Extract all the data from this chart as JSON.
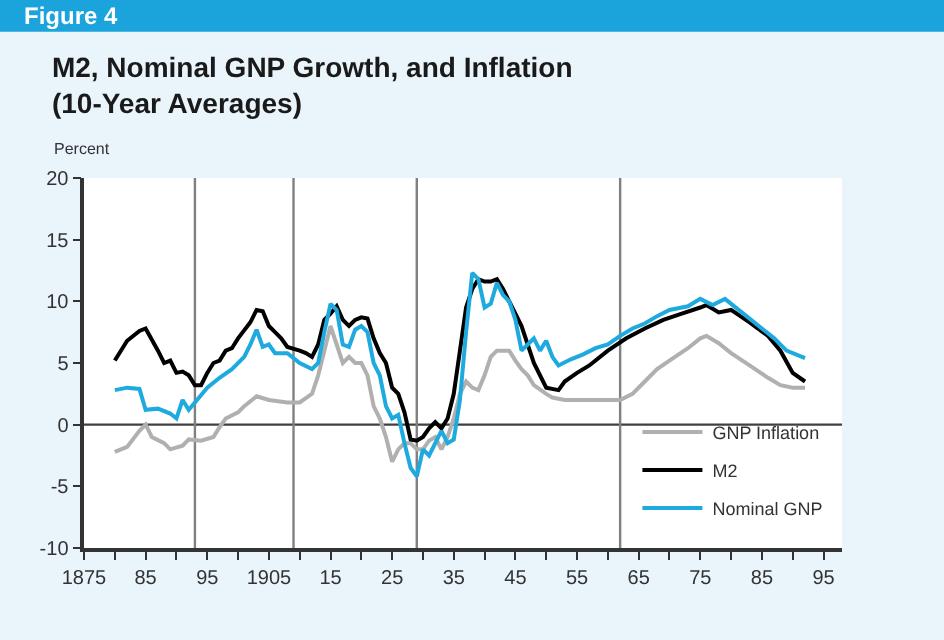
{
  "chart_data": {
    "type": "line",
    "title": "M2, Nominal GNP Growth, and Inflation\n(10-Year Averages)",
    "ylabel": "Percent",
    "annotations": [
      "Figure 4"
    ],
    "xlim": [
      1875,
      1998
    ],
    "ylim": [
      -10,
      20
    ],
    "xticks": [
      {
        "value": 1875,
        "label": "1875"
      },
      {
        "value": 1880,
        "label": null
      },
      {
        "value": 1885,
        "label": "85"
      },
      {
        "value": 1890,
        "label": null
      },
      {
        "value": 1895,
        "label": "95"
      },
      {
        "value": 1900,
        "label": null
      },
      {
        "value": 1905,
        "label": "1905"
      },
      {
        "value": 1910,
        "label": null
      },
      {
        "value": 1915,
        "label": "15"
      },
      {
        "value": 1920,
        "label": null
      },
      {
        "value": 1925,
        "label": "25"
      },
      {
        "value": 1930,
        "label": null
      },
      {
        "value": 1935,
        "label": "35"
      },
      {
        "value": 1940,
        "label": null
      },
      {
        "value": 1945,
        "label": "45"
      },
      {
        "value": 1950,
        "label": null
      },
      {
        "value": 1955,
        "label": "55"
      },
      {
        "value": 1960,
        "label": null
      },
      {
        "value": 1965,
        "label": "65"
      },
      {
        "value": 1970,
        "label": null
      },
      {
        "value": 1975,
        "label": "75"
      },
      {
        "value": 1980,
        "label": null
      },
      {
        "value": 1985,
        "label": "85"
      },
      {
        "value": 1990,
        "label": null
      },
      {
        "value": 1995,
        "label": "95"
      }
    ],
    "yticks": [
      -10,
      -5,
      0,
      5,
      10,
      15,
      20
    ],
    "grid": false,
    "legend": "bottom right",
    "marker": "none",
    "line_style": "solid",
    "ref_lines": [
      {
        "axis": "y",
        "value": 0,
        "color": "#404040"
      },
      {
        "axis": "x",
        "value": 1893,
        "color": "#808080"
      },
      {
        "axis": "x",
        "value": 1909,
        "color": "#808080"
      },
      {
        "axis": "x",
        "value": 1929,
        "color": "#808080"
      },
      {
        "axis": "x",
        "value": 1962,
        "color": "#808080"
      }
    ],
    "series": [
      {
        "name": "GNP Inflation",
        "color": "#b0b0b0",
        "x": [
          1880,
          1882,
          1884,
          1885,
          1886,
          1888,
          1889,
          1891,
          1892,
          1894,
          1896,
          1897,
          1898,
          1900,
          1901,
          1903,
          1905,
          1908,
          1910,
          1912,
          1913,
          1914,
          1915,
          1916,
          1917,
          1918,
          1919,
          1920,
          1921,
          1922,
          1923,
          1924,
          1925,
          1926,
          1927,
          1928,
          1929,
          1930,
          1931,
          1932,
          1933,
          1934,
          1935,
          1936,
          1937,
          1938,
          1939,
          1940,
          1941,
          1942,
          1944,
          1945,
          1946,
          1947,
          1948,
          1950,
          1951,
          1953,
          1956,
          1959,
          1962,
          1964,
          1966,
          1968,
          1970,
          1973,
          1975,
          1976,
          1978,
          1980,
          1983,
          1986,
          1988,
          1990,
          1992
        ],
        "values": [
          -2.2,
          -1.8,
          -0.5,
          0.0,
          -1.0,
          -1.5,
          -2.0,
          -1.7,
          -1.2,
          -1.3,
          -1.0,
          -0.2,
          0.5,
          1.0,
          1.5,
          2.3,
          2.0,
          1.8,
          1.8,
          2.5,
          4.0,
          6.0,
          8.0,
          6.5,
          5.0,
          5.5,
          5.0,
          5.0,
          4.0,
          1.5,
          0.5,
          -1.0,
          -3.0,
          -2.0,
          -1.5,
          -1.5,
          -2.0,
          -2.0,
          -1.3,
          -1.0,
          -2.0,
          -1.0,
          0.5,
          2.5,
          3.5,
          3.0,
          2.8,
          4.0,
          5.5,
          6.0,
          6.0,
          5.2,
          4.5,
          4.0,
          3.2,
          2.5,
          2.2,
          2.0,
          2.0,
          2.0,
          2.0,
          2.5,
          3.5,
          4.5,
          5.2,
          6.2,
          7.0,
          7.2,
          6.6,
          5.8,
          4.8,
          3.8,
          3.2,
          3.0,
          3.0
        ]
      },
      {
        "name": "M2",
        "color": "#000000",
        "x": [
          1880,
          1882,
          1884,
          1885,
          1887,
          1888,
          1889,
          1890,
          1891,
          1892,
          1893,
          1894,
          1895,
          1896,
          1897,
          1898,
          1899,
          1900,
          1902,
          1903,
          1904,
          1905,
          1906,
          1907,
          1908,
          1910,
          1911,
          1912,
          1913,
          1914,
          1915,
          1916,
          1917,
          1918,
          1919,
          1920,
          1921,
          1922,
          1923,
          1924,
          1925,
          1926,
          1927,
          1928,
          1929,
          1930,
          1931,
          1932,
          1933,
          1934,
          1935,
          1936,
          1937,
          1938,
          1939,
          1940,
          1941,
          1942,
          1943,
          1944,
          1946,
          1948,
          1950,
          1952,
          1953,
          1955,
          1957,
          1960,
          1963,
          1966,
          1969,
          1972,
          1975,
          1976,
          1978,
          1980,
          1983,
          1986,
          1988,
          1990,
          1992
        ],
        "values": [
          5.2,
          6.8,
          7.6,
          7.8,
          6.0,
          5.0,
          5.2,
          4.2,
          4.3,
          4.0,
          3.2,
          3.2,
          4.2,
          5.0,
          5.2,
          6.0,
          6.2,
          7.0,
          8.3,
          9.3,
          9.2,
          8.0,
          7.5,
          7.0,
          6.3,
          6.0,
          5.8,
          5.5,
          6.5,
          8.5,
          9.0,
          9.6,
          8.5,
          8.0,
          8.5,
          8.7,
          8.6,
          7.0,
          5.8,
          5.0,
          3.0,
          2.5,
          1.0,
          -1.2,
          -1.3,
          -1.0,
          -0.3,
          0.2,
          -0.3,
          0.5,
          2.5,
          6.0,
          9.5,
          11.0,
          11.8,
          11.6,
          11.6,
          11.8,
          11.0,
          10.0,
          8.0,
          5.0,
          3.0,
          2.8,
          3.5,
          4.2,
          4.8,
          6.0,
          7.0,
          7.8,
          8.5,
          9.0,
          9.5,
          9.7,
          9.1,
          9.3,
          8.3,
          7.2,
          6.0,
          4.2,
          3.5
        ]
      },
      {
        "name": "Nominal GNP",
        "color": "#1eaadf",
        "x": [
          1880,
          1882,
          1884,
          1885,
          1887,
          1889,
          1890,
          1891,
          1892,
          1893,
          1895,
          1897,
          1899,
          1901,
          1902,
          1903,
          1904,
          1905,
          1906,
          1908,
          1910,
          1912,
          1913,
          1914,
          1915,
          1916,
          1917,
          1918,
          1919,
          1920,
          1921,
          1922,
          1923,
          1924,
          1925,
          1926,
          1927,
          1928,
          1929,
          1930,
          1931,
          1932,
          1933,
          1934,
          1935,
          1936,
          1937,
          1938,
          1939,
          1940,
          1941,
          1942,
          1943,
          1944,
          1945,
          1946,
          1947,
          1948,
          1949,
          1950,
          1951,
          1952,
          1954,
          1956,
          1958,
          1960,
          1962,
          1964,
          1966,
          1968,
          1970,
          1972,
          1973,
          1975,
          1977,
          1979,
          1982,
          1985,
          1987,
          1989,
          1992
        ],
        "values": [
          2.8,
          3.0,
          2.9,
          1.2,
          1.3,
          0.9,
          0.5,
          2.0,
          1.2,
          1.8,
          3.0,
          3.8,
          4.5,
          5.5,
          6.5,
          7.7,
          6.3,
          6.5,
          5.8,
          5.8,
          5.0,
          4.5,
          5.0,
          7.5,
          9.8,
          9.3,
          6.5,
          6.3,
          7.7,
          8.0,
          7.5,
          5.0,
          4.0,
          1.5,
          0.5,
          0.8,
          -1.5,
          -3.5,
          -4.2,
          -2.0,
          -2.5,
          -1.5,
          -0.5,
          -1.5,
          -1.2,
          2.0,
          7.5,
          12.3,
          11.8,
          9.5,
          9.8,
          11.5,
          10.5,
          10.0,
          8.5,
          6.0,
          6.5,
          7.0,
          6.0,
          6.8,
          5.5,
          4.8,
          5.3,
          5.7,
          6.2,
          6.5,
          7.2,
          7.8,
          8.2,
          8.8,
          9.3,
          9.5,
          9.6,
          10.2,
          9.7,
          10.2,
          9.0,
          7.8,
          7.0,
          6.0,
          5.4
        ]
      }
    ]
  }
}
